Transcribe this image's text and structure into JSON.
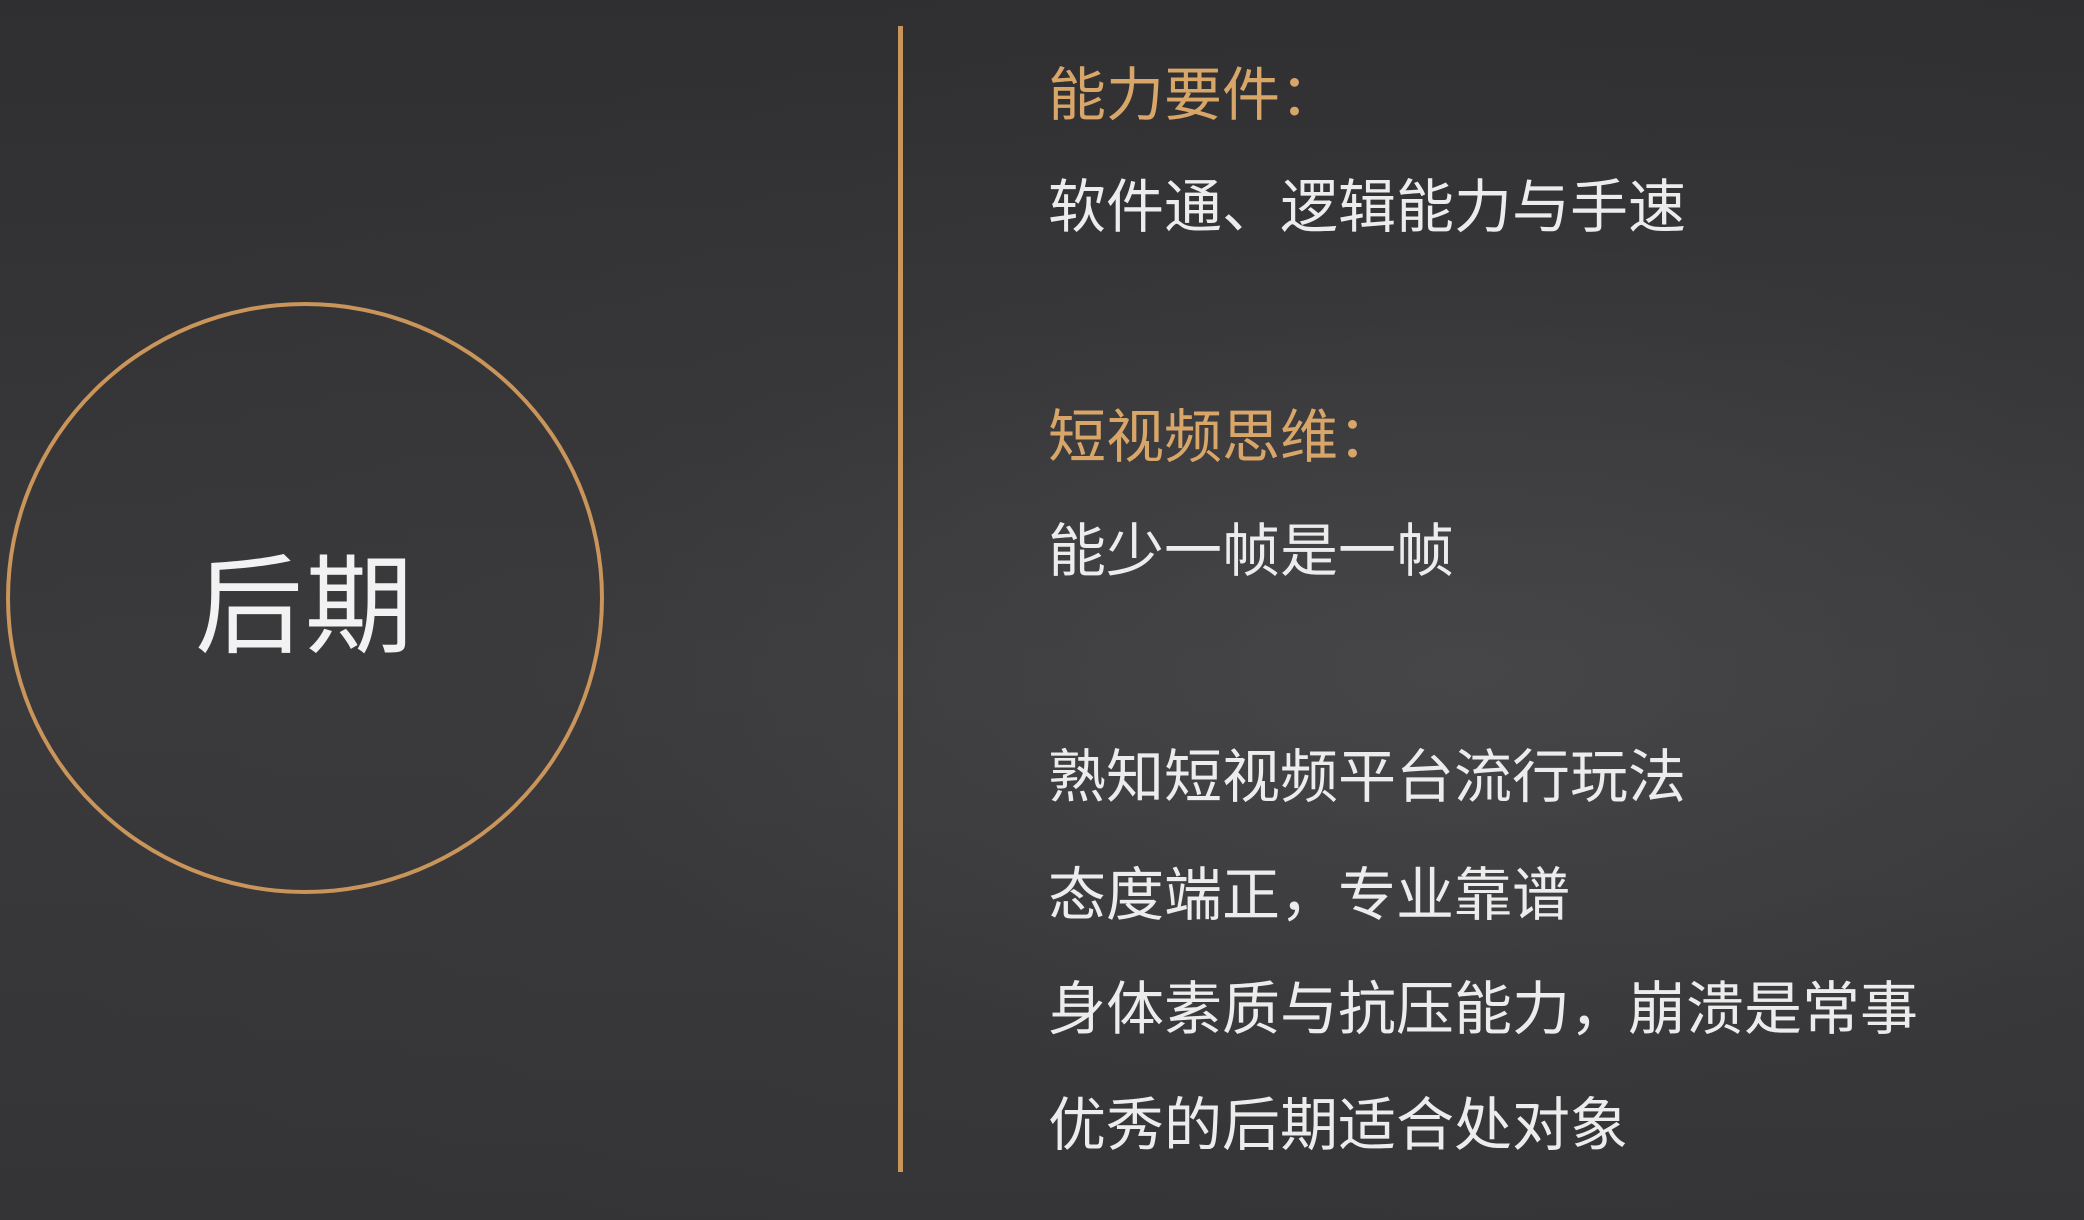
{
  "circle": {
    "title": "后期"
  },
  "colors": {
    "accent": "#c9955a",
    "heading": "#d9a66a",
    "text": "#ececec",
    "background": "#363638"
  },
  "sections": {
    "ability": {
      "heading": "能力要件：",
      "body": "软件通、逻辑能力与手速"
    },
    "thinking": {
      "heading": "短视频思维：",
      "body": "能少一帧是一帧"
    }
  },
  "list": [
    "熟知短视频平台流行玩法",
    "态度端正，专业靠谱",
    "身体素质与抗压能力，崩溃是常事",
    "优秀的后期适合处对象"
  ]
}
